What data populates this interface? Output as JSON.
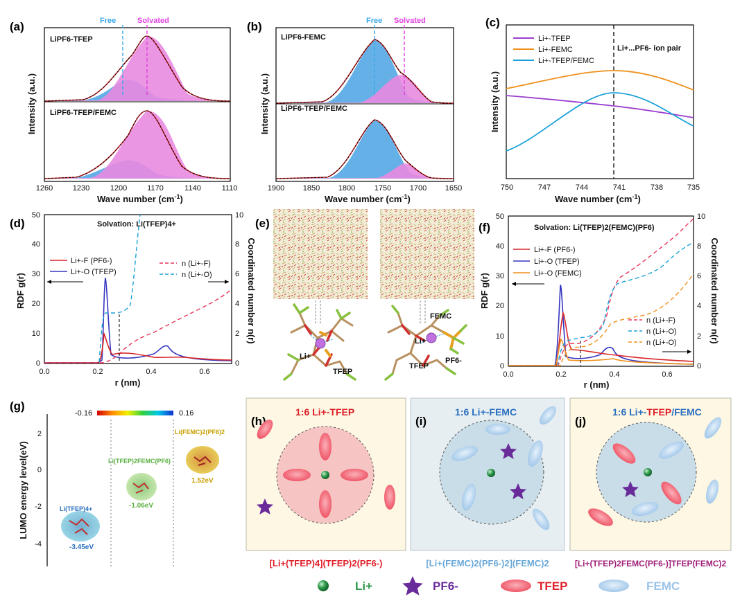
{
  "colors": {
    "free_blue": "#3aa8e8",
    "solvated_magenta": "#e040e0",
    "fit_red": "#d8262a",
    "tfep_red": "#f0556a",
    "femc_blue": "#a9cdee",
    "pf6_purple": "#6a2b9a",
    "li_green": "#2e9a4c",
    "li_tfep_purple": "#9b3fcf",
    "li_femc_orange": "#f0901c",
    "li_tfep_femc_cyan": "#1aa0d8",
    "circle_fill_h": "#f7c4c4",
    "circle_fill_ij": "#c9dde8",
    "box_fill": "#fdf7e3"
  },
  "panels": {
    "a": {
      "label": "(a)",
      "top_title": "LiPF6-TFEP",
      "bottom_title": "LiPF6-TFEP/FEMC",
      "free_label": "Free",
      "solvated_label": "Solvated",
      "ylabel": "Intensity (a.u.)",
      "xlabel": "Wave number (cm",
      "xlabel_sup": "-1",
      "xlabel_tail": ")",
      "xticks": [
        "1260",
        "1230",
        "1200",
        "1170",
        "1140",
        "1110"
      ]
    },
    "b": {
      "label": "(b)",
      "top_title": "LiPF6-FEMC",
      "bottom_title": "LiPF6-TFEP/FEMC",
      "free_label": "Free",
      "solvated_label": "Solvated",
      "ylabel": "Intensity (a.u.)",
      "xlabel": "Wave number (cm",
      "xlabel_sup": "-1",
      "xlabel_tail": ")",
      "xticks": [
        "1900",
        "1850",
        "1800",
        "1750",
        "1700",
        "1650"
      ]
    },
    "c": {
      "label": "(c)",
      "legend": [
        "Li+-TFEP",
        "Li+-FEMC",
        "Li+-TFEP/FEMC"
      ],
      "annotation": "Li+...PF6- ion pair",
      "ylabel": "Intensity (a.u.)",
      "xlabel": "Wave number (cm",
      "xlabel_sup": "-1",
      "xlabel_tail": ")",
      "xticks": [
        "750",
        "747",
        "744",
        "741",
        "738",
        "735"
      ]
    },
    "d": {
      "label": "(d)",
      "title": "Solvation: Li(TFEP)4+",
      "legend_left": [
        "Li+-F (PF6-)",
        "Li+-O (TFEP)"
      ],
      "legend_right": [
        "n (Li+-F)",
        "n (Li+-O)"
      ],
      "ylabel": "RDF g(r)",
      "y2label": "Coordinated number n(r)",
      "xlabel": "r (nm)",
      "yticks": [
        "0",
        "10",
        "20",
        "30",
        "40",
        "50"
      ],
      "y2ticks": [
        "0",
        "2",
        "4",
        "6",
        "8",
        "10"
      ],
      "xticks": [
        "0.0",
        "0.2",
        "0.4",
        "0.6"
      ]
    },
    "e": {
      "label": "(e)",
      "left_labels": [
        "Li+",
        "TFEP"
      ],
      "right_labels": [
        "FEMC",
        "Li+",
        "PF6-",
        "TFEP"
      ]
    },
    "f": {
      "label": "(f)",
      "title": "Solvation: Li(TFEP)2(FEMC)(PF6)",
      "legend_left": [
        "Li+-F (PF6-)",
        "Li+-O (TFEP)",
        "Li+-O (FEMC)"
      ],
      "legend_right": [
        "n (Li+-F)",
        "n (Li+-O)",
        "n (Li+-O)"
      ],
      "ylabel": "RDF g(r)",
      "y2label": "Coordinated number n(r)",
      "xlabel": "r (nm)",
      "yticks": [
        "0",
        "10",
        "20",
        "30",
        "40",
        "50"
      ],
      "y2ticks": [
        "0",
        "2",
        "4",
        "6",
        "8",
        "10"
      ],
      "xticks": [
        "0.0",
        "0.2",
        "0.4",
        "0.6"
      ]
    },
    "g": {
      "label": "(g)",
      "colorbar_min": "-0.16",
      "colorbar_max": "0.16",
      "ylabel": "LUMO energy level(eV)",
      "yticks": [
        "2",
        "0",
        "-2",
        "-4"
      ],
      "species": [
        {
          "name": "Li(TFEP)4+",
          "energy": "-3.45eV"
        },
        {
          "name": "Li(TFEP)2FEMC(PF6)",
          "energy": "-1.06eV"
        },
        {
          "name": "Li(FEMC)2(PF6)2",
          "energy": "1.52eV"
        }
      ]
    },
    "h": {
      "label": "(h)",
      "title": "1:6 Li+-TFEP",
      "formula": "[Li+(TFEP)4](TFEP)2(PF6-)"
    },
    "i": {
      "label": "(i)",
      "title": "1:6 Li+-FEMC",
      "formula": "[Li+(FEMC)2(PF6-)2](FEMC)2"
    },
    "j": {
      "label": "(j)",
      "title_a": "1:6 Li+-",
      "title_b": "TFEP",
      "title_c": "/FEMC",
      "formula": "[Li+(TFEP)2FEMC(PF6-)]TFEP(FEMC)2"
    }
  },
  "bottom_legend": [
    "Li+",
    "PF6-",
    "TFEP",
    "FEMC"
  ]
}
